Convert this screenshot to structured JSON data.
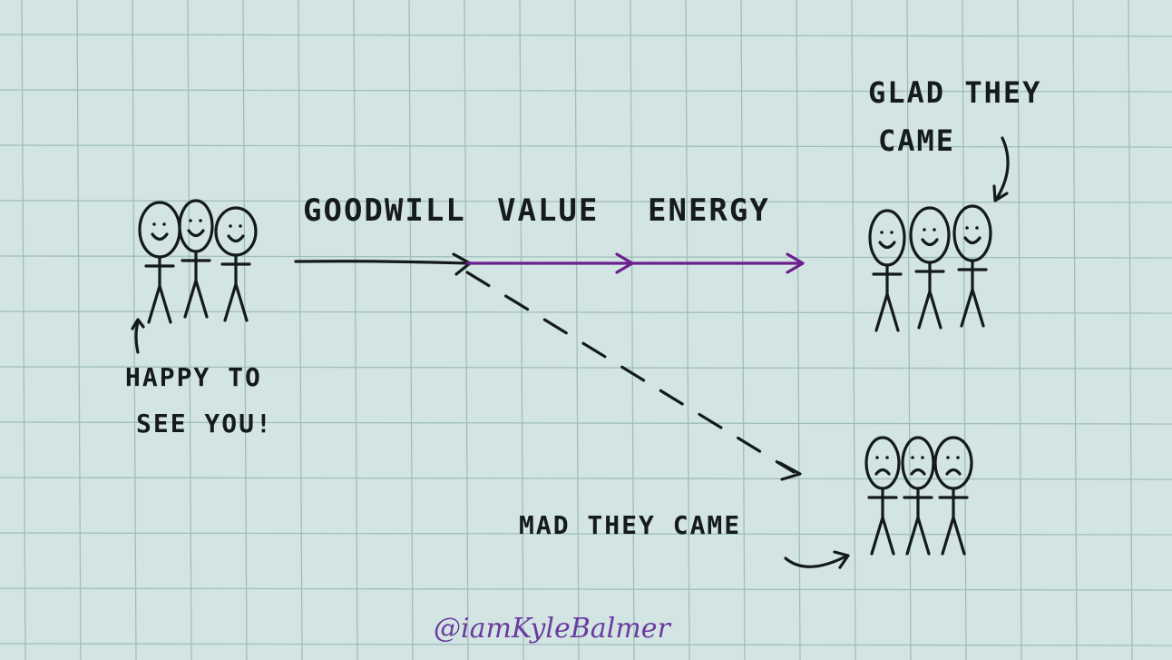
{
  "labels": {
    "goodwill": "GOODWILL",
    "value": "VALUE",
    "energy": "ENERGY",
    "glad_line1": "GLAD THEY",
    "glad_line2": "CAME",
    "happy_line1": "HAPPY TO",
    "happy_line2": "SEE YOU!",
    "mad": "MAD THEY CAME"
  },
  "signature": "@iamKyleBalmer",
  "colors": {
    "paper": "#d3e5e3",
    "grid": "#9fbdbd",
    "ink": "#141a1c",
    "arrow_accent": "#6c1f8c",
    "signature": "#6a3aa0"
  }
}
